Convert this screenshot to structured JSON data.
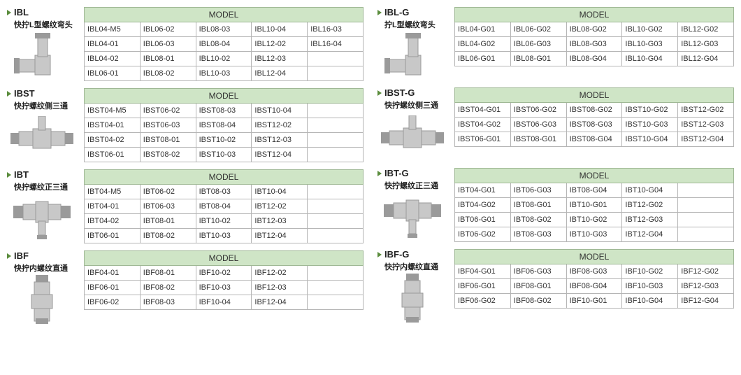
{
  "header_label": "MODEL",
  "colors": {
    "header_bg": "#cfe5c6",
    "header_border": "#9fb895",
    "cell_border": "#b5b5b5",
    "bullet": "#5a8c3c",
    "metal": "#c8c8c8",
    "metal_dark": "#9a9a9a"
  },
  "sections": [
    {
      "code": "IBL",
      "desc": "快拧L型螺纹弯头",
      "icon": "elbow",
      "cols": 5,
      "rows": [
        [
          "IBL04-M5",
          "IBL06-02",
          "IBL08-03",
          "IBL10-04",
          "IBL16-03"
        ],
        [
          "IBL04-01",
          "IBL06-03",
          "IBL08-04",
          "IBL12-02",
          "IBL16-04"
        ],
        [
          "IBL04-02",
          "IBL08-01",
          "IBL10-02",
          "IBL12-03",
          ""
        ],
        [
          "IBL06-01",
          "IBL08-02",
          "IBL10-03",
          "IBL12-04",
          ""
        ]
      ]
    },
    {
      "code": "IBL-G",
      "desc": "拧L型螺纹弯头",
      "icon": "elbow",
      "cols": 5,
      "rows": [
        [
          "IBL04-G01",
          "IBL06-G02",
          "IBL08-G02",
          "IBL10-G02",
          "IBL12-G02"
        ],
        [
          "IBL04-G02",
          "IBL06-G03",
          "IBL08-G03",
          "IBL10-G03",
          "IBL12-G03"
        ],
        [
          "IBL06-G01",
          "IBL08-G01",
          "IBL08-G04",
          "IBL10-G04",
          "IBL12-G04"
        ]
      ]
    },
    {
      "code": "IBST",
      "desc": "快拧螺纹侧三通",
      "icon": "side-tee",
      "cols": 5,
      "rows": [
        [
          "IBST04-M5",
          "IBST06-02",
          "IBST08-03",
          "IBST10-04",
          ""
        ],
        [
          "IBST04-01",
          "IBST06-03",
          "IBST08-04",
          "IBST12-02",
          ""
        ],
        [
          "IBST04-02",
          "IBST08-01",
          "IBST10-02",
          "IBST12-03",
          ""
        ],
        [
          "IBST06-01",
          "IBST08-02",
          "IBST10-03",
          "IBST12-04",
          ""
        ]
      ]
    },
    {
      "code": "IBST-G",
      "desc": "快拧螺纹侧三通",
      "icon": "side-tee",
      "cols": 5,
      "rows": [
        [
          "IBST04-G01",
          "IBST06-G02",
          "IBST08-G02",
          "IBST10-G02",
          "IBST12-G02"
        ],
        [
          "IBST04-G02",
          "IBST06-G03",
          "IBST08-G03",
          "IBST10-G03",
          "IBST12-G03"
        ],
        [
          "IBST06-G01",
          "IBST08-G01",
          "IBST08-G04",
          "IBST10-G04",
          "IBST12-G04"
        ]
      ]
    },
    {
      "code": "IBT",
      "desc": "快拧螺纹正三通",
      "icon": "tee",
      "cols": 5,
      "rows": [
        [
          "IBT04-M5",
          "IBT06-02",
          "IBT08-03",
          "IBT10-04",
          ""
        ],
        [
          "IBT04-01",
          "IBT06-03",
          "IBT08-04",
          "IBT12-02",
          ""
        ],
        [
          "IBT04-02",
          "IBT08-01",
          "IBT10-02",
          "IBT12-03",
          ""
        ],
        [
          "IBT06-01",
          "IBT08-02",
          "IBT10-03",
          "IBT12-04",
          ""
        ]
      ]
    },
    {
      "code": "IBT-G",
      "desc": "快拧螺纹正三通",
      "icon": "tee",
      "cols": 5,
      "rows": [
        [
          "IBT04-G01",
          "IBT06-G03",
          "IBT08-G04",
          "IBT10-G04",
          ""
        ],
        [
          "IBT04-G02",
          "IBT08-G01",
          "IBT10-G01",
          "IBT12-G02",
          ""
        ],
        [
          "IBT06-G01",
          "IBT08-G02",
          "IBT10-G02",
          "IBT12-G03",
          ""
        ],
        [
          "IBT06-G02",
          "IBT08-G03",
          "IBT10-G03",
          "IBT12-G04",
          ""
        ]
      ]
    },
    {
      "code": "IBF",
      "desc": "快拧内螺纹直通",
      "icon": "straight",
      "cols": 5,
      "rows": [
        [
          "IBF04-01",
          "IBF08-01",
          "IBF10-02",
          "IBF12-02",
          ""
        ],
        [
          "IBF06-01",
          "IBF08-02",
          "IBF10-03",
          "IBF12-03",
          ""
        ],
        [
          "IBF06-02",
          "IBF08-03",
          "IBF10-04",
          "IBF12-04",
          ""
        ]
      ]
    },
    {
      "code": "IBF-G",
      "desc": "快拧内螺纹直通",
      "icon": "straight",
      "cols": 5,
      "rows": [
        [
          "IBF04-G01",
          "IBF06-G03",
          "IBF08-G03",
          "IBF10-G02",
          "IBF12-G02"
        ],
        [
          "IBF06-G01",
          "IBF08-G01",
          "IBF08-G04",
          "IBF10-G03",
          "IBF12-G03"
        ],
        [
          "IBF06-G02",
          "IBF08-G02",
          "IBF10-G01",
          "IBF10-G04",
          "IBF12-G04"
        ]
      ]
    }
  ]
}
